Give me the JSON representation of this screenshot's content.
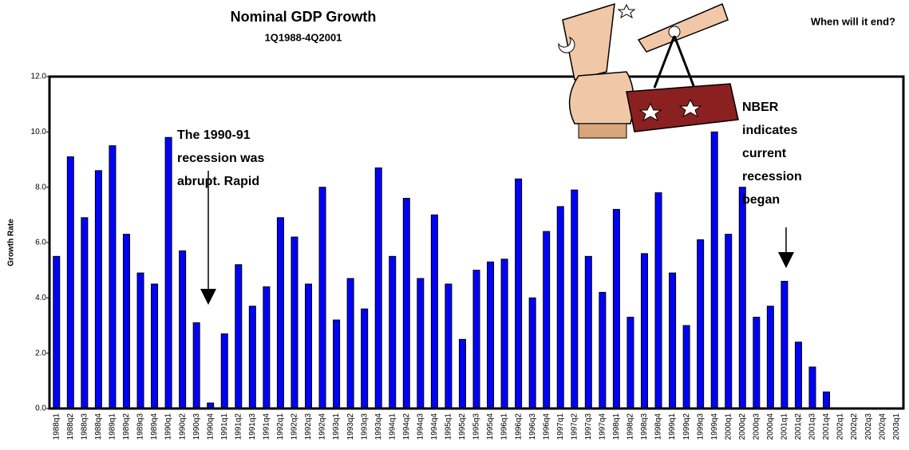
{
  "chart_data": {
    "type": "bar",
    "title": "Nominal GDP Growth",
    "subtitle": "1Q1988-4Q2001",
    "y_label": "Growth Rate",
    "color": "#0000ff",
    "categories": [
      "1988q1",
      "1988q2",
      "1988q3",
      "1988q4",
      "1989q1",
      "1989q2",
      "1989q3",
      "1989q4",
      "1990q1",
      "1990q2",
      "1990q3",
      "1990q4",
      "1991q1",
      "1991q2",
      "1991q3",
      "1991q4",
      "1992q1",
      "1992q2",
      "1992q3",
      "1992q4",
      "1993q1",
      "1993q2",
      "1993q3",
      "1993q4",
      "1994q1",
      "1994q2",
      "1994q3",
      "1994q4",
      "1995q1",
      "1995q2",
      "1995q3",
      "1995q4",
      "1996q1",
      "1996q2",
      "1996q3",
      "1996q4",
      "1997q1",
      "1997q2",
      "1997q3",
      "1997q4",
      "1998q1",
      "1998q2",
      "1998q3",
      "1998q4",
      "1999q1",
      "1999q2",
      "1999q3",
      "1999q4",
      "2000q1",
      "2000q2",
      "2000q3",
      "2000q4",
      "2001q1",
      "2001q2",
      "2001q3",
      "2001q4",
      "2002q1",
      "2002q2",
      "2002q3",
      "2002q4",
      "2003q1"
    ],
    "values": [
      5.5,
      9.1,
      6.9,
      8.6,
      9.5,
      6.3,
      4.9,
      4.5,
      9.8,
      5.7,
      3.1,
      0.2,
      2.7,
      5.2,
      3.7,
      4.4,
      6.9,
      6.2,
      4.5,
      8.0,
      3.2,
      4.7,
      3.6,
      8.7,
      5.5,
      7.6,
      4.7,
      7.0,
      4.5,
      2.5,
      5.0,
      5.3,
      5.4,
      8.3,
      4.0,
      6.4,
      7.3,
      7.9,
      5.5,
      4.2,
      7.2,
      3.3,
      5.6,
      7.8,
      4.9,
      3.0,
      6.1,
      10.0,
      6.3,
      8.0,
      3.3,
      3.7,
      4.6,
      2.4,
      1.5,
      0.6,
      null,
      null,
      null,
      null,
      null
    ],
    "ylim": [
      0,
      12
    ],
    "yticks": [
      {
        "value": 0,
        "label": "0.0"
      },
      {
        "value": 2,
        "label": "2.0"
      },
      {
        "value": 4,
        "label": "4.0"
      },
      {
        "value": 6,
        "label": "6.0"
      },
      {
        "value": 8,
        "label": "8.0"
      },
      {
        "value": 10,
        "label": "10.0"
      },
      {
        "value": 12,
        "label": "12.0"
      }
    ],
    "annotations": [
      {
        "lines": [
          "The 1990-91",
          "recession was",
          "abrupt.  Rapid"
        ]
      },
      {
        "lines": [
          "NBER",
          "indicates",
          "current",
          "recession",
          "began"
        ]
      },
      {
        "lines": [
          "When will it end?"
        ]
      }
    ]
  }
}
